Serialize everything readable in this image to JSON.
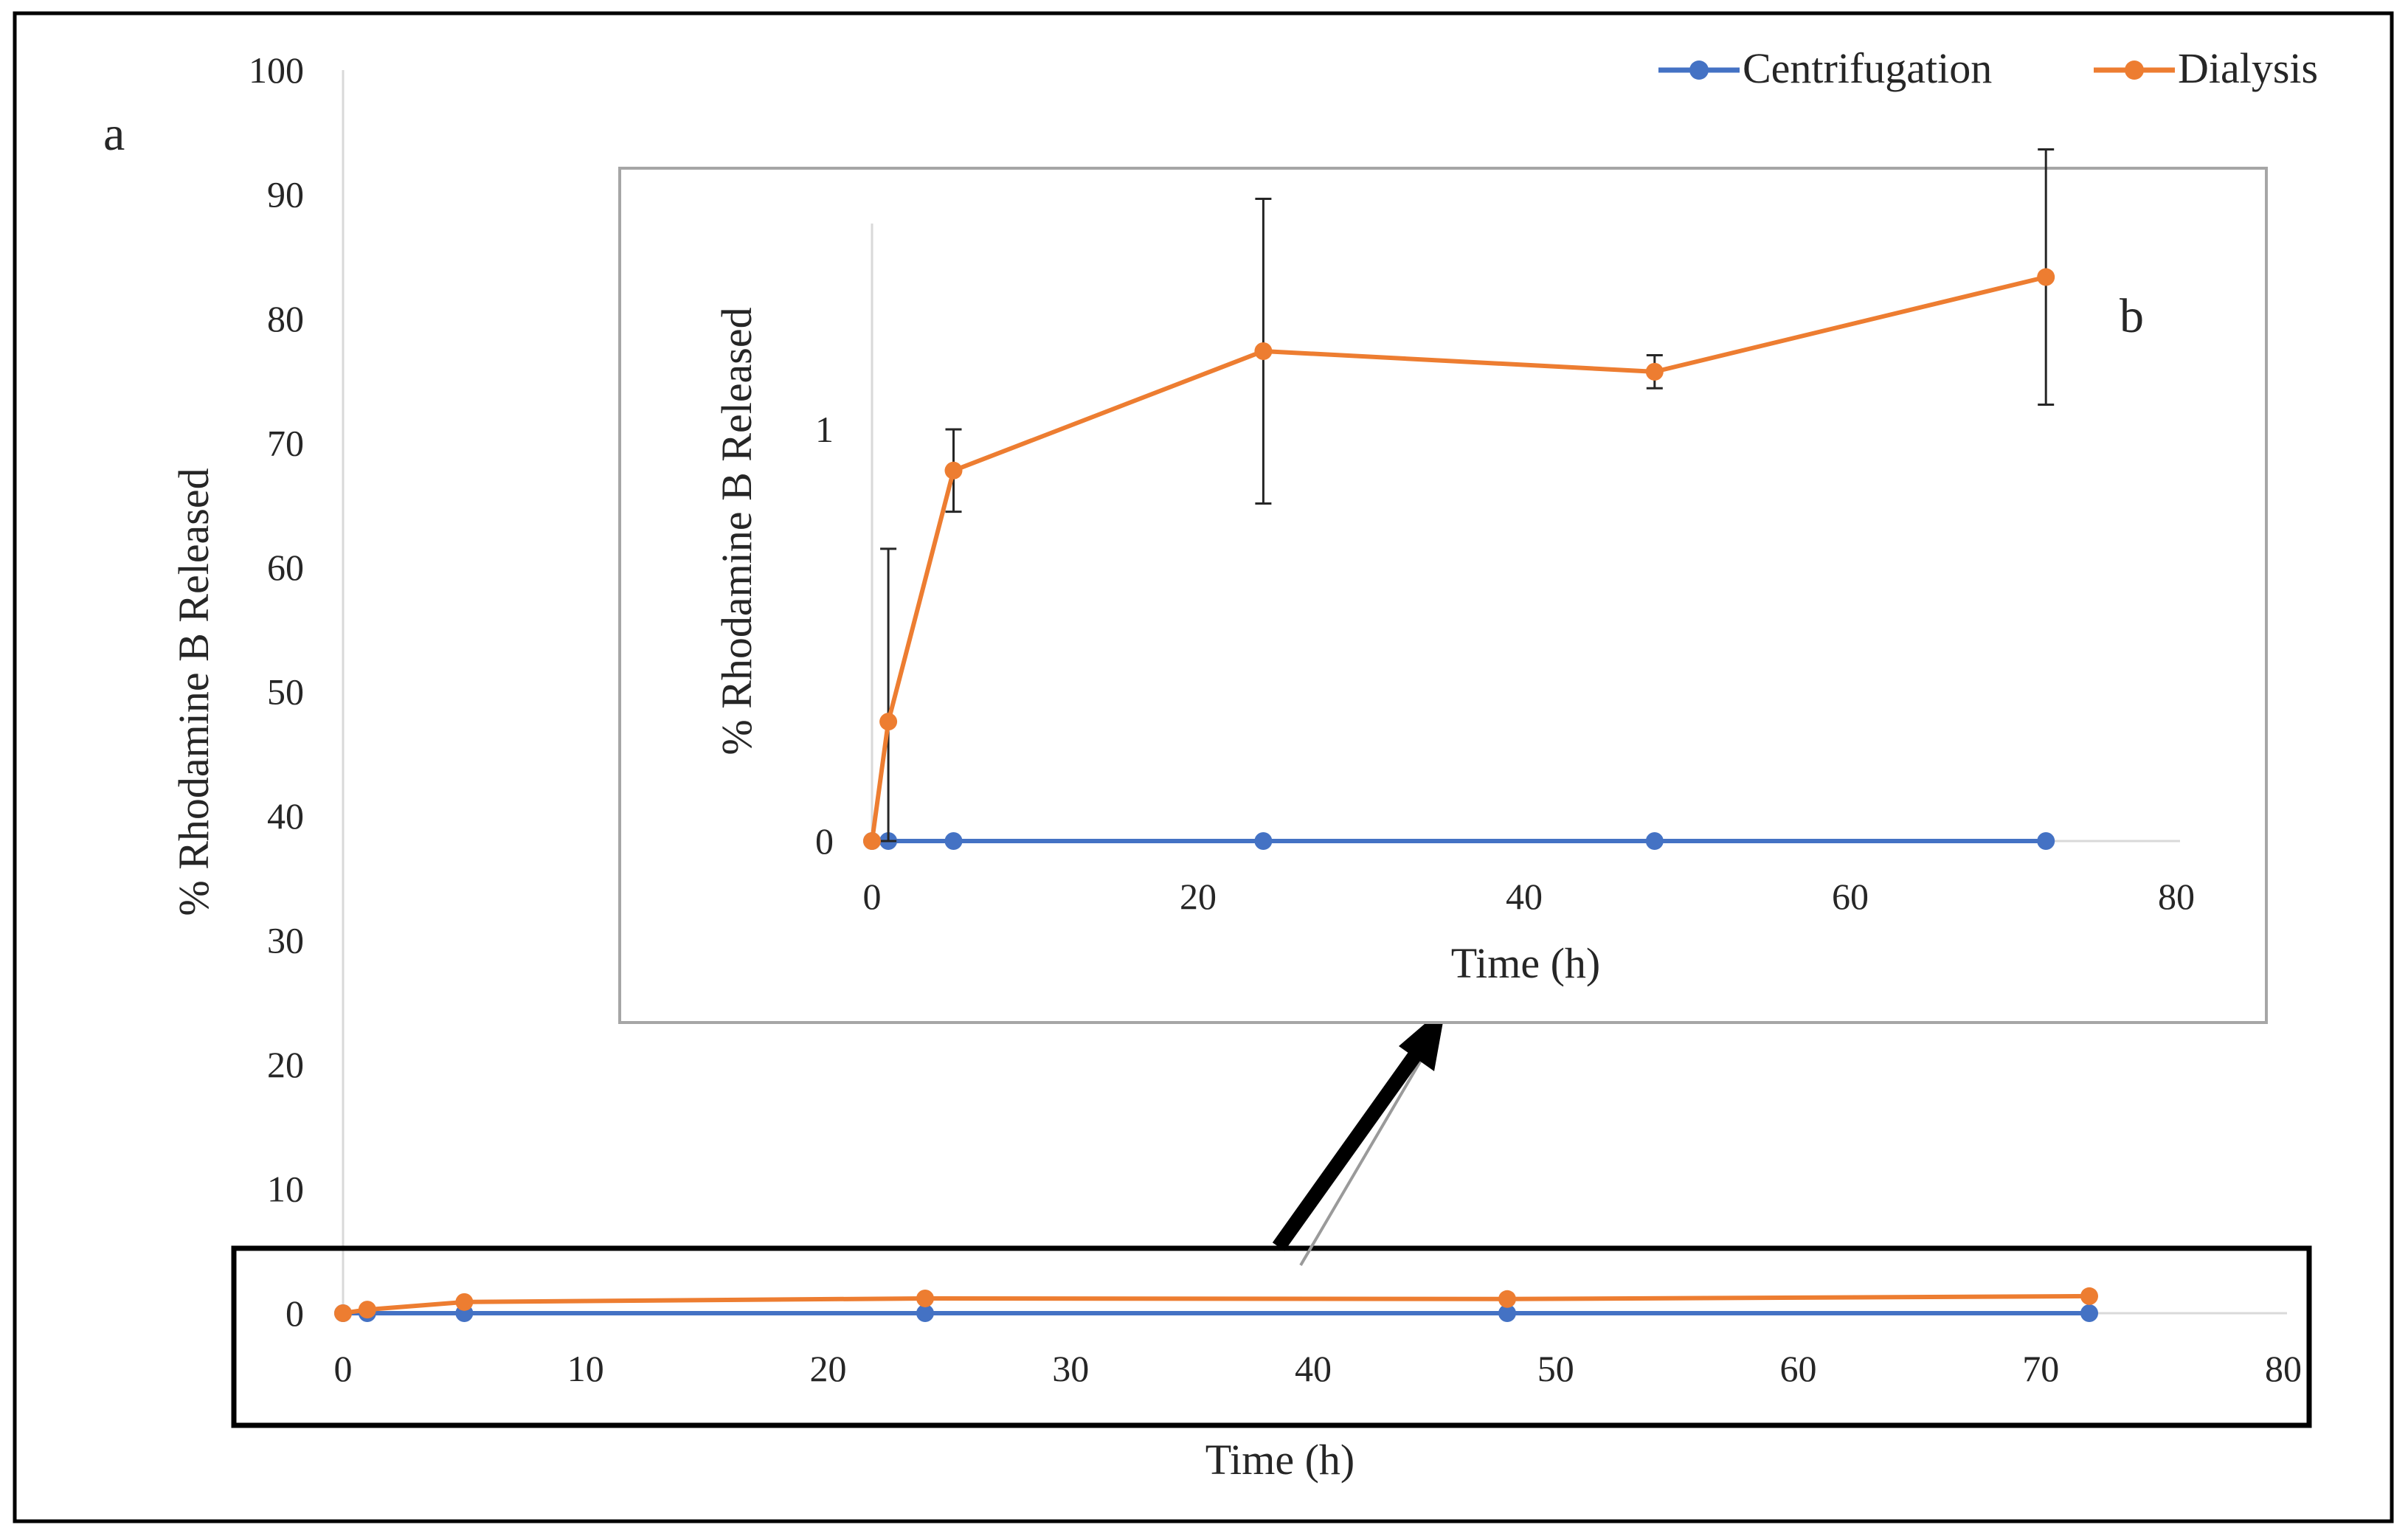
{
  "chart_data": [
    {
      "type": "line",
      "panel_label": "a",
      "xlabel": "Time (h)",
      "ylabel": "% Rhodamine B Released",
      "xlim": [
        0,
        80
      ],
      "ylim": [
        0,
        100
      ],
      "x_ticks": [
        "0",
        "10",
        "20",
        "30",
        "40",
        "50",
        "60",
        "70",
        "80"
      ],
      "y_ticks": [
        "0",
        "10",
        "20",
        "30",
        "40",
        "50",
        "60",
        "70",
        "80",
        "90",
        "100"
      ],
      "x": [
        0,
        1,
        5,
        24,
        48,
        72
      ],
      "series": [
        {
          "name": "Centrifugation",
          "color": "#4472c4",
          "values": [
            0,
            0,
            0,
            0,
            0,
            0
          ]
        },
        {
          "name": "Dialysis",
          "color": "#ed7d31",
          "values": [
            0,
            0.29,
            0.9,
            1.19,
            1.14,
            1.37
          ]
        }
      ],
      "legend_position": "top-right"
    },
    {
      "type": "line",
      "panel_label": "b",
      "inset_of": "a",
      "xlabel": "Time (h)",
      "ylabel": "% Rhodamine B Released",
      "xlim": [
        0,
        80
      ],
      "ylim": [
        0,
        1.5
      ],
      "x_ticks": [
        "0",
        "20",
        "40",
        "60",
        "80"
      ],
      "y_ticks": [
        "0",
        "1"
      ],
      "x": [
        0,
        1,
        5,
        24,
        48,
        72
      ],
      "series": [
        {
          "name": "Centrifugation",
          "color": "#4472c4",
          "values": [
            0,
            0,
            0,
            0,
            0,
            0
          ]
        },
        {
          "name": "Dialysis",
          "color": "#ed7d31",
          "values": [
            0,
            0.29,
            0.9,
            1.19,
            1.14,
            1.37
          ],
          "error": [
            0,
            0.42,
            0.1,
            0.37,
            0.04,
            0.31
          ]
        }
      ]
    }
  ]
}
